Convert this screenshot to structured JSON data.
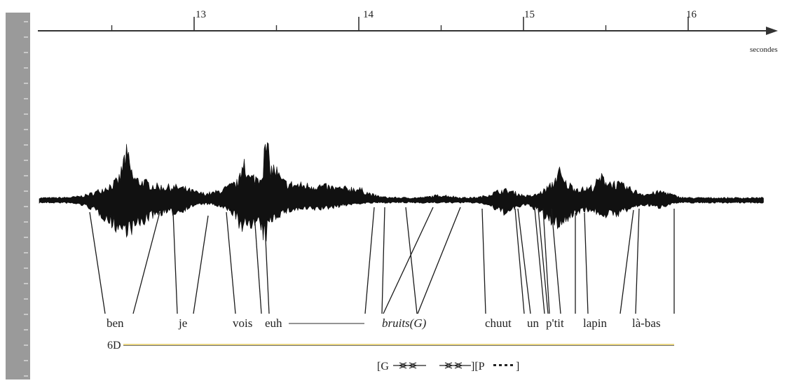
{
  "axis": {
    "unit_label": "secondes",
    "ticks": [
      {
        "label": "13",
        "value": 13
      },
      {
        "label": "14",
        "value": 14
      },
      {
        "label": "15",
        "value": 15
      },
      {
        "label": "16",
        "value": 16
      }
    ],
    "minor_ticks": [
      12.5,
      13.5,
      14.5,
      15.5
    ]
  },
  "words": [
    {
      "text": "ben",
      "italic": false
    },
    {
      "text": "je",
      "italic": false
    },
    {
      "text": "vois",
      "italic": false
    },
    {
      "text": "euh",
      "italic": false
    },
    {
      "text": "bruits(G)",
      "italic": true
    },
    {
      "text": "chuut",
      "italic": false
    },
    {
      "text": "un",
      "italic": false
    },
    {
      "text": "p'tit",
      "italic": false
    },
    {
      "text": "lapin",
      "italic": false
    },
    {
      "text": "là-bas",
      "italic": false
    }
  ],
  "gesture_label": "6D",
  "gesture_code": {
    "part1": "[G",
    "part2": "][P",
    "part3": "]"
  },
  "colors": {
    "waveform": "#111111",
    "axis": "#333333",
    "ruler": "#9a9a9a",
    "gesture_line": "#e3c95b"
  }
}
